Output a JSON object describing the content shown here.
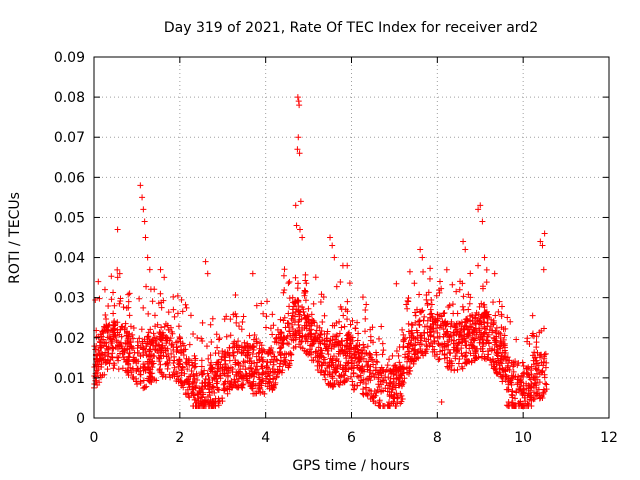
{
  "chart_data": {
    "type": "scatter",
    "title": "Day 319 of 2021, Rate Of TEC Index for receiver ard2",
    "xlabel": "GPS time / hours",
    "ylabel": "ROTI / TECUs",
    "xlim": [
      0,
      12
    ],
    "ylim": [
      0,
      0.09
    ],
    "xticks": [
      0,
      2,
      4,
      6,
      8,
      10,
      12
    ],
    "xtick_labels": [
      "0",
      "2",
      "4",
      "6",
      "8",
      "10",
      "12"
    ],
    "yticks": [
      0,
      0.01,
      0.02,
      0.03,
      0.04,
      0.05,
      0.06,
      0.07,
      0.08,
      0.09
    ],
    "ytick_labels": [
      "0",
      "0.01",
      "0.02",
      "0.03",
      "0.04",
      "0.05",
      "0.06",
      "0.07",
      "0.08",
      "0.09"
    ],
    "grid": true,
    "marker": "+",
    "color": "#ff0000",
    "series": [
      {
        "name": "ROTI",
        "x_range": [
          0,
          10.55
        ],
        "typical_range": [
          0.005,
          0.025
        ],
        "notable_points": [
          {
            "x": 0.1,
            "y": 0.034
          },
          {
            "x": 0.55,
            "y": 0.047
          },
          {
            "x": 0.6,
            "y": 0.036
          },
          {
            "x": 1.08,
            "y": 0.058
          },
          {
            "x": 1.12,
            "y": 0.055
          },
          {
            "x": 1.15,
            "y": 0.052
          },
          {
            "x": 1.18,
            "y": 0.049
          },
          {
            "x": 1.2,
            "y": 0.045
          },
          {
            "x": 1.25,
            "y": 0.04
          },
          {
            "x": 1.3,
            "y": 0.037
          },
          {
            "x": 1.55,
            "y": 0.037
          },
          {
            "x": 2.6,
            "y": 0.039
          },
          {
            "x": 2.65,
            "y": 0.036
          },
          {
            "x": 3.7,
            "y": 0.036
          },
          {
            "x": 4.7,
            "y": 0.053
          },
          {
            "x": 4.72,
            "y": 0.048
          },
          {
            "x": 4.75,
            "y": 0.08
          },
          {
            "x": 4.77,
            "y": 0.079
          },
          {
            "x": 4.78,
            "y": 0.078
          },
          {
            "x": 4.76,
            "y": 0.07
          },
          {
            "x": 4.74,
            "y": 0.067
          },
          {
            "x": 4.79,
            "y": 0.066
          },
          {
            "x": 4.82,
            "y": 0.054
          },
          {
            "x": 4.8,
            "y": 0.047
          },
          {
            "x": 4.85,
            "y": 0.045
          },
          {
            "x": 5.5,
            "y": 0.045
          },
          {
            "x": 5.55,
            "y": 0.043
          },
          {
            "x": 5.6,
            "y": 0.04
          },
          {
            "x": 5.8,
            "y": 0.038
          },
          {
            "x": 5.9,
            "y": 0.038
          },
          {
            "x": 7.6,
            "y": 0.042
          },
          {
            "x": 7.65,
            "y": 0.04
          },
          {
            "x": 8.1,
            "y": 0.004
          },
          {
            "x": 8.6,
            "y": 0.044
          },
          {
            "x": 8.65,
            "y": 0.042
          },
          {
            "x": 8.95,
            "y": 0.052
          },
          {
            "x": 9.0,
            "y": 0.053
          },
          {
            "x": 9.05,
            "y": 0.049
          },
          {
            "x": 9.1,
            "y": 0.04
          },
          {
            "x": 10.4,
            "y": 0.044
          },
          {
            "x": 10.45,
            "y": 0.043
          },
          {
            "x": 10.5,
            "y": 0.046
          },
          {
            "x": 10.48,
            "y": 0.037
          },
          {
            "x": 10.45,
            "y": 0.005
          }
        ]
      }
    ]
  }
}
